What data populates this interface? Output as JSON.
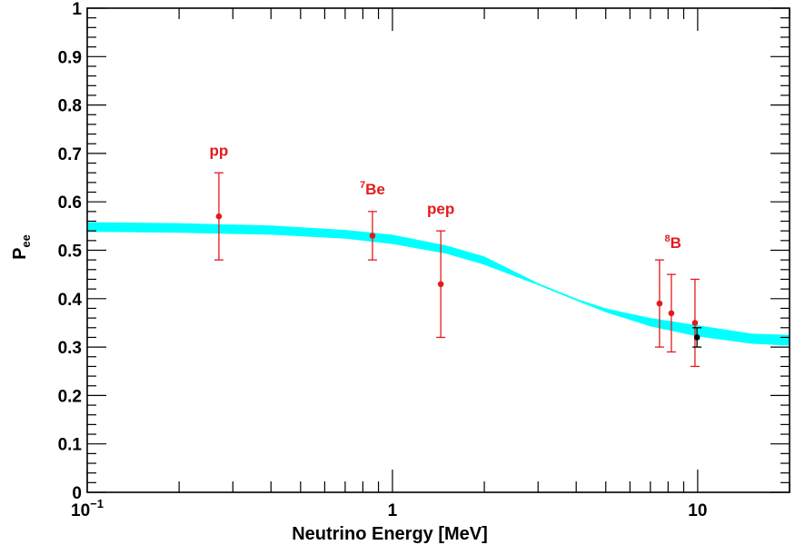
{
  "chart_data": {
    "type": "scatter",
    "title": "",
    "xlabel": "Neutrino Energy [MeV]",
    "ylabel": {
      "main": "P",
      "sub": "ee"
    },
    "x_scale": "log",
    "xlim": [
      0.1,
      20
    ],
    "ylim": [
      0,
      1
    ],
    "grid": false,
    "x_ticks": [
      {
        "value": 0.1,
        "base": "10",
        "exp": "−1"
      },
      {
        "value": 1,
        "base": "1",
        "exp": ""
      },
      {
        "value": 10,
        "base": "10",
        "exp": ""
      }
    ],
    "y_ticks": [
      {
        "value": 0,
        "label": "0"
      },
      {
        "value": 0.1,
        "label": "0.1"
      },
      {
        "value": 0.2,
        "label": "0.2"
      },
      {
        "value": 0.3,
        "label": "0.3"
      },
      {
        "value": 0.4,
        "label": "0.4"
      },
      {
        "value": 0.5,
        "label": "0.5"
      },
      {
        "value": 0.6,
        "label": "0.6"
      },
      {
        "value": 0.7,
        "label": "0.7"
      },
      {
        "value": 0.8,
        "label": "0.8"
      },
      {
        "value": 0.9,
        "label": "0.9"
      },
      {
        "value": 1,
        "label": "1"
      }
    ],
    "band": {
      "color": "#00ffff",
      "x": [
        0.1,
        0.2,
        0.4,
        0.7,
        1.0,
        1.5,
        2.0,
        3.0,
        4.0,
        5.0,
        7.0,
        10.0,
        15.0,
        20.0
      ],
      "lower": [
        0.538,
        0.536,
        0.532,
        0.524,
        0.513,
        0.493,
        0.47,
        0.428,
        0.396,
        0.372,
        0.343,
        0.322,
        0.307,
        0.303
      ],
      "upper": [
        0.558,
        0.556,
        0.551,
        0.542,
        0.532,
        0.51,
        0.487,
        0.432,
        0.4,
        0.38,
        0.36,
        0.345,
        0.328,
        0.325
      ]
    },
    "series": [
      {
        "color": "#e41a1c",
        "points": [
          {
            "x": 0.27,
            "y": 0.57,
            "y_low": 0.48,
            "y_high": 0.66
          },
          {
            "x": 0.86,
            "y": 0.53,
            "y_low": 0.48,
            "y_high": 0.58
          },
          {
            "x": 1.44,
            "y": 0.43,
            "y_low": 0.32,
            "y_high": 0.54
          },
          {
            "x": 7.5,
            "y": 0.39,
            "y_low": 0.3,
            "y_high": 0.48
          },
          {
            "x": 8.2,
            "y": 0.37,
            "y_low": 0.29,
            "y_high": 0.45
          },
          {
            "x": 9.8,
            "y": 0.35,
            "y_low": 0.26,
            "y_high": 0.44
          }
        ]
      },
      {
        "color": "#000000",
        "points": [
          {
            "x": 9.95,
            "y": 0.32,
            "y_low": 0.3,
            "y_high": 0.34
          }
        ]
      }
    ],
    "annotations": [
      {
        "text": "pp",
        "sup": "",
        "x": 0.27,
        "y": 0.695,
        "color": "#e41a1c"
      },
      {
        "text": "Be",
        "sup": "7",
        "x": 0.86,
        "y": 0.615,
        "color": "#e41a1c"
      },
      {
        "text": "pep",
        "sup": "",
        "x": 1.44,
        "y": 0.575,
        "color": "#e41a1c"
      },
      {
        "text": "B",
        "sup": "8",
        "x": 8.3,
        "y": 0.505,
        "color": "#e41a1c"
      }
    ]
  }
}
